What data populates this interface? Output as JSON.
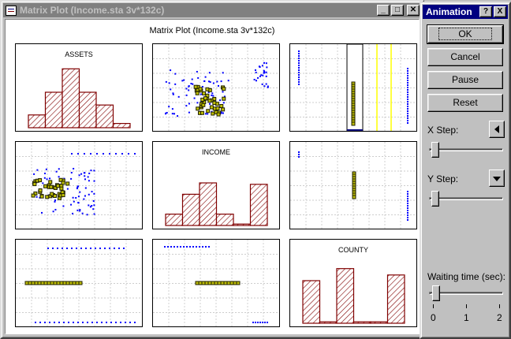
{
  "matrix_window": {
    "title": "Matrix Plot (Income.sta 3v*132c)",
    "plot_title": "Matrix Plot (Income.sta 3v*132c)",
    "variables": [
      "ASSETS",
      "INCOME",
      "COUNTY"
    ]
  },
  "animation_window": {
    "title": "Animation",
    "help_button": "?",
    "close_button": "X",
    "ok_label": "OK",
    "cancel_label": "Cancel",
    "pause_label": "Pause",
    "reset_label": "Reset",
    "x_step_label": "X Step:",
    "y_step_label": "Y Step:",
    "waiting_label": "Waiting time (sec):",
    "waiting_ticks": [
      "0",
      "1",
      "2"
    ],
    "waiting_value": 0.1
  },
  "colors": {
    "bar_stroke": "#800000",
    "hatch": "#800000",
    "point_blue": "#0000ff",
    "point_dark": "#202000",
    "point_fill": "#c0c000",
    "highlight": "#ffff00",
    "brush_fill": "#000080"
  },
  "chart_data": [
    {
      "type": "bar",
      "variable": "ASSETS",
      "values": [
        0.18,
        0.5,
        0.83,
        0.5,
        0.32,
        0.06
      ]
    },
    {
      "type": "bar",
      "variable": "INCOME",
      "values": [
        0.16,
        0.44,
        0.6,
        0.16,
        0.02,
        0.58
      ]
    },
    {
      "type": "bar",
      "variable": "COUNTY",
      "values": [
        0.6,
        0.02,
        0.77,
        0.02,
        0.02,
        0.68
      ]
    }
  ]
}
